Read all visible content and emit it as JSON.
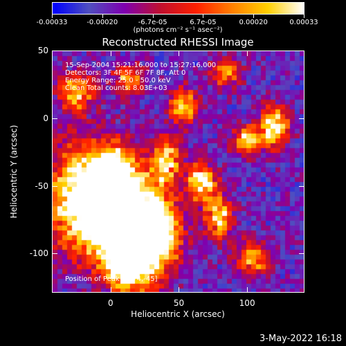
{
  "colorbar": {
    "labels": [
      "-0.00033",
      "-0.00020",
      "-6.7e-05",
      "6.7e-05",
      "0.00020",
      "0.00033"
    ],
    "units": "(photons cm⁻² s⁻¹ asec⁻²)",
    "range": [
      -0.00033,
      0.00033
    ]
  },
  "title": "Reconstructed RHESSI Image",
  "annotations": {
    "time": "15-Sep-2004 15:21:16.000 to 15:27:16.000",
    "detectors": "Detectors: 3F 4F 5F 6F 7F 8F, Att 0",
    "energy": "Energy Range: 25.0 - 50.0 keV",
    "clean": "Clean     Total counts: 8.03E+03",
    "peak": "Position of Peak = [74,-45]"
  },
  "chart_data": {
    "type": "heatmap",
    "xlabel": "Heliocentric X (arcsec)",
    "ylabel": "Heliocentric Y (arcsec)",
    "xlim": [
      -43,
      142
    ],
    "ylim": [
      -129,
      50
    ],
    "x_ticks": [
      0,
      50,
      100
    ],
    "y_ticks": [
      50,
      0,
      -50,
      -100
    ],
    "x_tick_labels": [
      "0",
      "50",
      "100"
    ],
    "y_tick_labels": [
      "50",
      "0",
      "-50",
      "-100"
    ],
    "peak": [
      74,
      -45
    ],
    "colormap": [
      "#0000ff",
      "#5050c0",
      "#8000b0",
      "#c01030",
      "#ff2000",
      "#ff8000",
      "#ffd000",
      "#ffffff"
    ]
  },
  "footer": {
    "date": "3-May-2022 16:18"
  }
}
